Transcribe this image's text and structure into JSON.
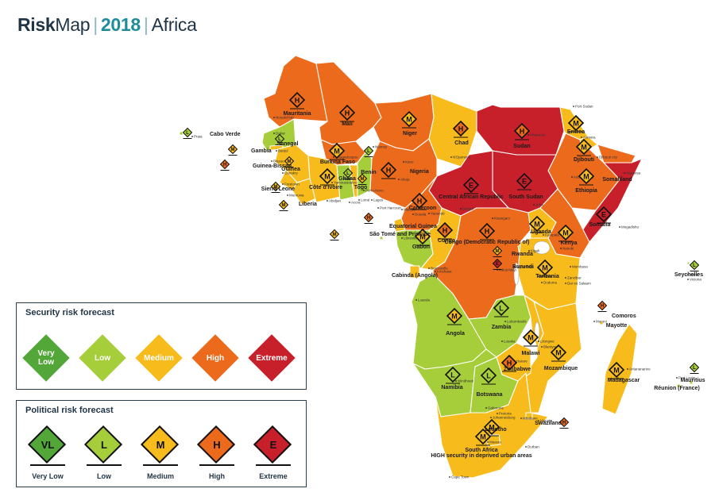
{
  "title": {
    "brand_bold": "Risk",
    "brand_light": "Map",
    "year": "2018",
    "region": "Africa"
  },
  "colors": {
    "very_low": "#52a738",
    "low": "#a6cd3a",
    "medium": "#f7bb1c",
    "high": "#ec6a1c",
    "extreme": "#c8202a"
  },
  "security_legend": {
    "title": "Security risk forecast",
    "items": [
      {
        "label": "Very Low",
        "level": "very_low"
      },
      {
        "label": "Low",
        "level": "low"
      },
      {
        "label": "Medium",
        "level": "medium"
      },
      {
        "label": "High",
        "level": "high"
      },
      {
        "label": "Extreme",
        "level": "extreme"
      }
    ]
  },
  "political_legend": {
    "title": "Political risk forecast",
    "items": [
      {
        "code": "VL",
        "label": "Very Low",
        "level": "very_low"
      },
      {
        "code": "L",
        "label": "Low",
        "level": "low"
      },
      {
        "code": "M",
        "label": "Medium",
        "level": "medium"
      },
      {
        "code": "H",
        "label": "High",
        "level": "high"
      },
      {
        "code": "E",
        "label": "Extreme",
        "level": "extreme"
      }
    ]
  },
  "countries": [
    {
      "name": "Mauritania",
      "code": "H",
      "security": "high"
    },
    {
      "name": "Mali",
      "code": "H",
      "security": "high"
    },
    {
      "name": "Niger",
      "code": "M",
      "security": "high"
    },
    {
      "name": "Chad",
      "code": "H",
      "security": "medium"
    },
    {
      "name": "Sudan",
      "code": "H",
      "security": "extreme"
    },
    {
      "name": "Eritrea",
      "code": "M",
      "security": "medium"
    },
    {
      "name": "Djibouti",
      "code": "M",
      "security": "medium"
    },
    {
      "name": "Somaliland",
      "code": "",
      "security": "high"
    },
    {
      "name": "Ethiopia",
      "code": "M",
      "security": "high"
    },
    {
      "name": "Somalia",
      "code": "E",
      "security": "extreme"
    },
    {
      "name": "Senegal",
      "code": "L",
      "security": "low"
    },
    {
      "name": "Gambia",
      "code": "M",
      "security": "medium"
    },
    {
      "name": "Guinea-Bissau",
      "code": "H",
      "security": "medium"
    },
    {
      "name": "Guinea",
      "code": "M",
      "security": "medium"
    },
    {
      "name": "Sierra Leone",
      "code": "M",
      "security": "medium"
    },
    {
      "name": "Liberia",
      "code": "M",
      "security": "medium"
    },
    {
      "name": "Cabo Verde",
      "code": "L",
      "security": "low"
    },
    {
      "name": "Burkina Faso",
      "code": "M",
      "security": "high"
    },
    {
      "name": "Côte d'Ivoire",
      "code": "M",
      "security": "medium"
    },
    {
      "name": "Ghana",
      "code": "L",
      "security": "low"
    },
    {
      "name": "Togo",
      "code": "M",
      "security": "medium"
    },
    {
      "name": "Benin",
      "code": "L",
      "security": "low"
    },
    {
      "name": "Nigeria",
      "code": "H",
      "security": "high"
    },
    {
      "name": "Cameroon",
      "code": "H",
      "security": "high"
    },
    {
      "name": "Central African Republic",
      "code": "E",
      "security": "extreme"
    },
    {
      "name": "South Sudan",
      "code": "E",
      "security": "extreme"
    },
    {
      "name": "Equatorial Guinea",
      "code": "H",
      "security": "medium"
    },
    {
      "name": "São Tomé and Principe",
      "code": "M",
      "security": "low"
    },
    {
      "name": "Gabon",
      "code": "M",
      "security": "low"
    },
    {
      "name": "Congo",
      "code": "H",
      "security": "medium"
    },
    {
      "name": "Congo (Democratic Republic of)",
      "code": "H",
      "security": "high"
    },
    {
      "name": "Uganda",
      "code": "M",
      "security": "medium"
    },
    {
      "name": "Kenya",
      "code": "M",
      "security": "high"
    },
    {
      "name": "Rwanda",
      "code": "M",
      "security": "low"
    },
    {
      "name": "Burundi",
      "code": "E",
      "security": "high"
    },
    {
      "name": "Cabinda (Angola)",
      "code": "",
      "security": "medium"
    },
    {
      "name": "Tanzania",
      "code": "M",
      "security": "medium"
    },
    {
      "name": "Seychelles",
      "code": "L",
      "security": "low"
    },
    {
      "name": "Angola",
      "code": "M",
      "security": "low"
    },
    {
      "name": "Zambia",
      "code": "L",
      "security": "low"
    },
    {
      "name": "Malawi",
      "code": "M",
      "security": "medium"
    },
    {
      "name": "Comoros",
      "code": "H",
      "security": "medium"
    },
    {
      "name": "Mayotte",
      "code": "",
      "security": "medium"
    },
    {
      "name": "Zimbabwe",
      "code": "H",
      "security": "medium"
    },
    {
      "name": "Mozambique",
      "code": "M",
      "security": "medium"
    },
    {
      "name": "Madagascar",
      "code": "M",
      "security": "medium"
    },
    {
      "name": "Mauritius",
      "code": "L",
      "security": "low"
    },
    {
      "name": "Réunion (France)",
      "code": "",
      "security": "low"
    },
    {
      "name": "Namibia",
      "code": "L",
      "security": "low"
    },
    {
      "name": "Botswana",
      "code": "L",
      "security": "low"
    },
    {
      "name": "Swaziland",
      "code": "H",
      "security": "medium"
    },
    {
      "name": "Lesotho",
      "code": "M",
      "security": "medium"
    },
    {
      "name": "South Africa",
      "code": "M",
      "security": "medium",
      "note": "HIGH security in deprived urban areas"
    }
  ],
  "cities": [
    "Nouakchott",
    "Dakar",
    "Banjul",
    "Bissau",
    "Conakry",
    "Freetown",
    "Monrovia",
    "Yamoussoukro",
    "Abidjan",
    "Ouagadougou",
    "Niamey",
    "Accra",
    "Lomé",
    "Porto-Novo",
    "Abuja",
    "Lagos",
    "Kano",
    "N'Djamena",
    "Khartoum",
    "Port Sudan",
    "Asmara",
    "Djibouti city",
    "Addis Ababa",
    "Hargeisa",
    "Mogadishu",
    "Juba",
    "Bangui",
    "Yaoundé",
    "Douala",
    "Malabo",
    "Port Harcourt",
    "Libreville",
    "Brazzaville",
    "Kinshasa",
    "Kampala",
    "Kigali",
    "Bujumbura",
    "Nairobi",
    "Kisangani",
    "Mombasa",
    "Dodoma",
    "Dar es Salaam",
    "Zanzibar",
    "Mbuji-Mayi",
    "Luanda",
    "Lubumbashi",
    "Lusaka",
    "Lilongwe",
    "Blantyre",
    "Harare",
    "Windhoek",
    "Gaborone",
    "Pretoria",
    "Johannesburg",
    "Mbabane",
    "Maputo",
    "Maseru",
    "Durban",
    "Cape Town",
    "Antananarivo",
    "Port Louis",
    "Victoria",
    "Mahé",
    "Moroni",
    "Praia"
  ]
}
